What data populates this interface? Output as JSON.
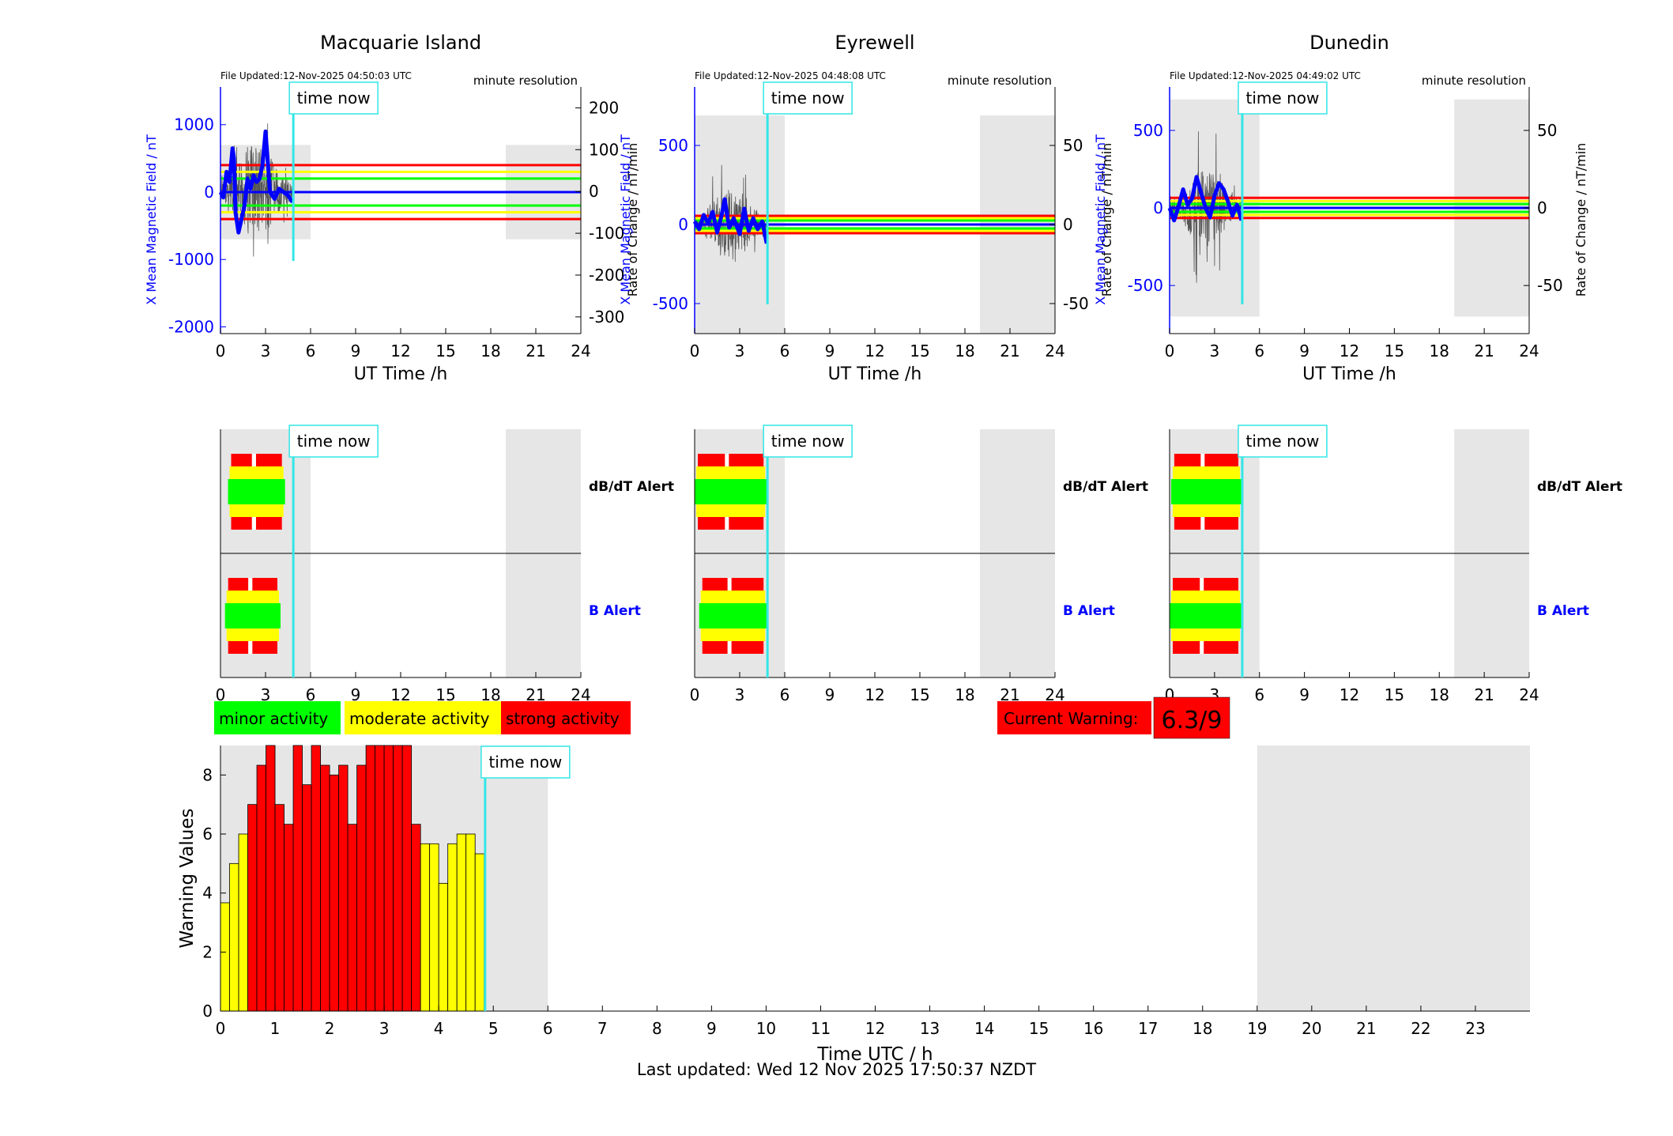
{
  "colors": {
    "shade": "#e6e6e6",
    "blue": "#0000ff",
    "cyan": "#33e6e6",
    "red": "#ff0000",
    "yellow": "#ffff00",
    "green": "#00ff00",
    "thin_black": "#555555"
  },
  "stations": [
    {
      "name": "Macquarie Island",
      "file_updated": "File Updated:12-Nov-2025 04:50:03 UTC",
      "resolution": "minute resolution",
      "left_ylabel": "X Mean Magnetic Field / nT",
      "right_ylabel": "Rate of Change / nT/min",
      "xlabel": "UT Time /h",
      "left_ylim": [
        -2100,
        1560
      ],
      "left_yticks": [
        -2000,
        -1000,
        0,
        1000
      ],
      "right_ylim": [
        -340,
        250
      ],
      "right_yticks": [
        -300,
        -200,
        -100,
        0,
        100,
        200
      ],
      "thresholds_left": [
        {
          "v": 400,
          "c": "red"
        },
        {
          "v": 300,
          "c": "yellow"
        },
        {
          "v": 200,
          "c": "green"
        },
        {
          "v": 0,
          "c": "blue"
        },
        {
          "v": -200,
          "c": "green"
        },
        {
          "v": -300,
          "c": "yellow"
        },
        {
          "v": -400,
          "c": "red"
        }
      ],
      "shade_left": [
        -700,
        700
      ],
      "blue_trace": [
        [
          0,
          0
        ],
        [
          0.2,
          -80
        ],
        [
          0.4,
          300
        ],
        [
          0.6,
          150
        ],
        [
          0.8,
          650
        ],
        [
          0.9,
          500
        ],
        [
          1.0,
          -300
        ],
        [
          1.2,
          -600
        ],
        [
          1.4,
          -400
        ],
        [
          1.6,
          -200
        ],
        [
          1.8,
          200
        ],
        [
          2.0,
          50
        ],
        [
          2.2,
          250
        ],
        [
          2.4,
          150
        ],
        [
          2.6,
          200
        ],
        [
          2.8,
          400
        ],
        [
          3.0,
          900
        ],
        [
          3.1,
          600
        ],
        [
          3.3,
          0
        ],
        [
          3.6,
          -100
        ],
        [
          3.9,
          50
        ],
        [
          4.2,
          0
        ],
        [
          4.5,
          -50
        ],
        [
          4.8,
          -150
        ]
      ],
      "dbdt_alerts": [
        {
          "start": 0.5,
          "end": 4.3,
          "level": "green"
        }
      ],
      "b_alerts": [
        {
          "start": 0.3,
          "end": 4.0,
          "level": "green"
        }
      ],
      "time_now_h": 4.85
    },
    {
      "name": "Eyrewell",
      "file_updated": "File Updated:12-Nov-2025 04:48:08 UTC",
      "resolution": "minute resolution",
      "left_ylabel": "X Mean Magnetic Field / nT",
      "right_ylabel": "Rate of Change / nT/min",
      "xlabel": "UT Time /h",
      "left_ylim": [
        -690,
        870
      ],
      "left_yticks": [
        -500,
        0,
        500
      ],
      "right_ylim": [
        -69,
        87
      ],
      "right_yticks": [
        -50,
        0,
        50
      ],
      "thresholds_left": [
        {
          "v": 55,
          "c": "red"
        },
        {
          "v": 40,
          "c": "yellow"
        },
        {
          "v": 25,
          "c": "green"
        },
        {
          "v": 0,
          "c": "blue"
        },
        {
          "v": -25,
          "c": "green"
        },
        {
          "v": -40,
          "c": "yellow"
        },
        {
          "v": -55,
          "c": "red"
        }
      ],
      "shade_left": [
        -690,
        690
      ],
      "blue_trace": [
        [
          0,
          20
        ],
        [
          0.3,
          -30
        ],
        [
          0.6,
          60
        ],
        [
          0.9,
          10
        ],
        [
          1.2,
          80
        ],
        [
          1.5,
          -50
        ],
        [
          1.8,
          60
        ],
        [
          2.0,
          160
        ],
        [
          2.3,
          -20
        ],
        [
          2.6,
          40
        ],
        [
          3.0,
          -60
        ],
        [
          3.3,
          100
        ],
        [
          3.6,
          -40
        ],
        [
          3.9,
          40
        ],
        [
          4.2,
          -30
        ],
        [
          4.5,
          20
        ],
        [
          4.8,
          -120
        ]
      ],
      "dbdt_alerts": [
        {
          "start": 0.0,
          "end": 4.8,
          "level": "green"
        }
      ],
      "b_alerts": [
        {
          "start": 0.3,
          "end": 4.8,
          "level": "green"
        }
      ],
      "time_now_h": 4.85
    },
    {
      "name": "Dunedin",
      "file_updated": "File Updated:12-Nov-2025 04:49:02 UTC",
      "resolution": "minute resolution",
      "left_ylabel": "X Mean Magnetic Field / nT",
      "right_ylabel": "Rate of Change / nT/min",
      "xlabel": "UT Time /h",
      "left_ylim": [
        -810,
        780
      ],
      "left_yticks": [
        -500,
        0,
        500
      ],
      "right_ylim": [
        -81,
        78
      ],
      "right_yticks": [
        -50,
        0,
        50
      ],
      "thresholds_left": [
        {
          "v": 65,
          "c": "red"
        },
        {
          "v": 45,
          "c": "yellow"
        },
        {
          "v": 25,
          "c": "green"
        },
        {
          "v": 0,
          "c": "blue"
        },
        {
          "v": -25,
          "c": "green"
        },
        {
          "v": -45,
          "c": "yellow"
        },
        {
          "v": -65,
          "c": "red"
        }
      ],
      "shade_left": [
        -700,
        700
      ],
      "blue_trace": [
        [
          0,
          0
        ],
        [
          0.3,
          -80
        ],
        [
          0.6,
          10
        ],
        [
          0.9,
          120
        ],
        [
          1.2,
          20
        ],
        [
          1.5,
          60
        ],
        [
          1.8,
          200
        ],
        [
          2.1,
          100
        ],
        [
          2.4,
          0
        ],
        [
          2.7,
          -60
        ],
        [
          3.0,
          80
        ],
        [
          3.3,
          160
        ],
        [
          3.6,
          120
        ],
        [
          3.9,
          40
        ],
        [
          4.2,
          -50
        ],
        [
          4.5,
          20
        ],
        [
          4.8,
          -80
        ]
      ],
      "dbdt_alerts": [
        {
          "start": 0.1,
          "end": 4.8,
          "level": "green"
        }
      ],
      "b_alerts": [
        {
          "start": 0.0,
          "end": 4.8,
          "level": "green"
        }
      ],
      "time_now_h": 4.85
    }
  ],
  "time_now_label": "time now",
  "shade_hours": [
    [
      0,
      6
    ],
    [
      19,
      24
    ]
  ],
  "dbdt_label": "dB/dT Alert",
  "b_label": "B Alert",
  "legend": {
    "minor": "minor activity",
    "moderate": "moderate activity",
    "strong": "strong activity"
  },
  "current_warning": {
    "label": "Current Warning:",
    "value": "6.3/9"
  },
  "chart_data": {
    "type": "bar",
    "xlabel": "Time UTC / h",
    "ylabel": "Warning Values",
    "xlim": [
      0,
      24
    ],
    "ylim": [
      0,
      9
    ],
    "xticks": [
      0,
      1,
      2,
      3,
      4,
      5,
      6,
      7,
      8,
      9,
      10,
      11,
      12,
      13,
      14,
      15,
      16,
      17,
      18,
      19,
      20,
      21,
      22,
      23
    ],
    "yticks": [
      0,
      2,
      4,
      6,
      8
    ],
    "bar_width_h": 0.1667,
    "bars": [
      {
        "t": 0.0,
        "v": 3.67,
        "c": "yellow"
      },
      {
        "t": 0.1667,
        "v": 5.0,
        "c": "yellow"
      },
      {
        "t": 0.3333,
        "v": 6.0,
        "c": "yellow"
      },
      {
        "t": 0.5,
        "v": 7.0,
        "c": "red"
      },
      {
        "t": 0.6667,
        "v": 8.33,
        "c": "red"
      },
      {
        "t": 0.8333,
        "v": 9.0,
        "c": "red"
      },
      {
        "t": 1.0,
        "v": 7.0,
        "c": "red"
      },
      {
        "t": 1.1667,
        "v": 6.33,
        "c": "red"
      },
      {
        "t": 1.3333,
        "v": 9.0,
        "c": "red"
      },
      {
        "t": 1.5,
        "v": 7.67,
        "c": "red"
      },
      {
        "t": 1.6667,
        "v": 9.0,
        "c": "red"
      },
      {
        "t": 1.8333,
        "v": 8.33,
        "c": "red"
      },
      {
        "t": 2.0,
        "v": 8.0,
        "c": "red"
      },
      {
        "t": 2.1667,
        "v": 8.33,
        "c": "red"
      },
      {
        "t": 2.3333,
        "v": 6.33,
        "c": "red"
      },
      {
        "t": 2.5,
        "v": 8.33,
        "c": "red"
      },
      {
        "t": 2.6667,
        "v": 9.0,
        "c": "red"
      },
      {
        "t": 2.8333,
        "v": 9.0,
        "c": "red"
      },
      {
        "t": 3.0,
        "v": 9.0,
        "c": "red"
      },
      {
        "t": 3.1667,
        "v": 9.0,
        "c": "red"
      },
      {
        "t": 3.3333,
        "v": 9.0,
        "c": "red"
      },
      {
        "t": 3.5,
        "v": 6.33,
        "c": "red"
      },
      {
        "t": 3.6667,
        "v": 5.67,
        "c": "yellow"
      },
      {
        "t": 3.8333,
        "v": 5.67,
        "c": "yellow"
      },
      {
        "t": 4.0,
        "v": 4.33,
        "c": "yellow"
      },
      {
        "t": 4.1667,
        "v": 5.67,
        "c": "yellow"
      },
      {
        "t": 4.3333,
        "v": 6.0,
        "c": "yellow"
      },
      {
        "t": 4.5,
        "v": 6.0,
        "c": "yellow"
      },
      {
        "t": 4.6667,
        "v": 5.33,
        "c": "yellow"
      }
    ],
    "time_now_h": 4.85
  },
  "last_updated": "Last updated: Wed 12 Nov 2025 17:50:37 NZDT"
}
